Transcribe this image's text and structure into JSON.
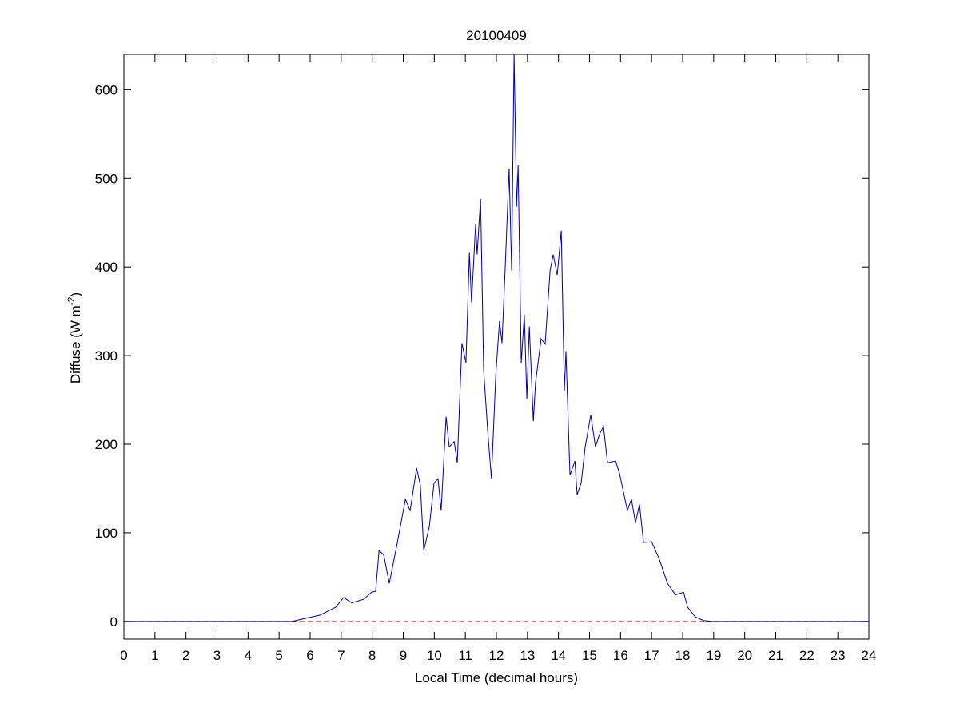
{
  "chart_data": {
    "type": "line",
    "title": "20100409",
    "xlabel": "Local Time (decimal hours)",
    "ylabel": {
      "text": "Diffuse (W m",
      "superscript": "-2",
      "suffix": ")"
    },
    "xlim": [
      0,
      24
    ],
    "xticks": [
      0,
      1,
      2,
      3,
      4,
      5,
      6,
      7,
      8,
      9,
      10,
      11,
      12,
      13,
      14,
      15,
      16,
      17,
      18,
      19,
      20,
      21,
      22,
      23,
      24
    ],
    "ylim": [
      -20,
      640
    ],
    "yticks": [
      0,
      100,
      200,
      300,
      400,
      500,
      600
    ],
    "grid": false,
    "reference_line": {
      "value": 0,
      "color": "#cc2222",
      "dash": true
    },
    "x": [
      0,
      5.41,
      6.31,
      6.82,
      7.08,
      7.34,
      7.73,
      7.98,
      8.11,
      8.22,
      8.37,
      8.55,
      8.81,
      9.07,
      9.22,
      9.43,
      9.55,
      9.66,
      9.84,
      9.99,
      10.12,
      10.22,
      10.38,
      10.48,
      10.64,
      10.74,
      10.89,
      11.02,
      11.13,
      11.2,
      11.33,
      11.38,
      11.49,
      11.59,
      11.72,
      11.84,
      11.98,
      12.1,
      12.18,
      12.28,
      12.41,
      12.49,
      12.57,
      12.65,
      12.7,
      12.8,
      12.9,
      12.98,
      13.06,
      13.19,
      13.26,
      13.44,
      13.57,
      13.73,
      13.83,
      13.96,
      14.09,
      14.19,
      14.24,
      14.37,
      14.53,
      14.6,
      14.73,
      14.86,
      15.04,
      15.19,
      15.32,
      15.45,
      15.58,
      15.84,
      15.96,
      16.22,
      16.35,
      16.48,
      16.61,
      16.74,
      17,
      17.25,
      17.51,
      17.77,
      18.03,
      18.16,
      18.41,
      18.67,
      18.93,
      24
    ],
    "series": [
      {
        "name": "Diffuse",
        "color": "#0000aa",
        "values": [
          0,
          0,
          7,
          16,
          27,
          21,
          25,
          33,
          34,
          80,
          75,
          43,
          89,
          138,
          125,
          173,
          154,
          80,
          107,
          156,
          161,
          125,
          231,
          197,
          203,
          179,
          314,
          292,
          416,
          360,
          448,
          414,
          477,
          283,
          215,
          161,
          278,
          339,
          314,
          396,
          511,
          396,
          640,
          468,
          515,
          292,
          346,
          251,
          333,
          226,
          269,
          319,
          313,
          396,
          414,
          391,
          441,
          260,
          305,
          165,
          181,
          143,
          156,
          197,
          233,
          197,
          211,
          220,
          179,
          181,
          168,
          125,
          138,
          111,
          132,
          89,
          90,
          70,
          43,
          30,
          33,
          16,
          5,
          1,
          0,
          0
        ]
      }
    ]
  }
}
